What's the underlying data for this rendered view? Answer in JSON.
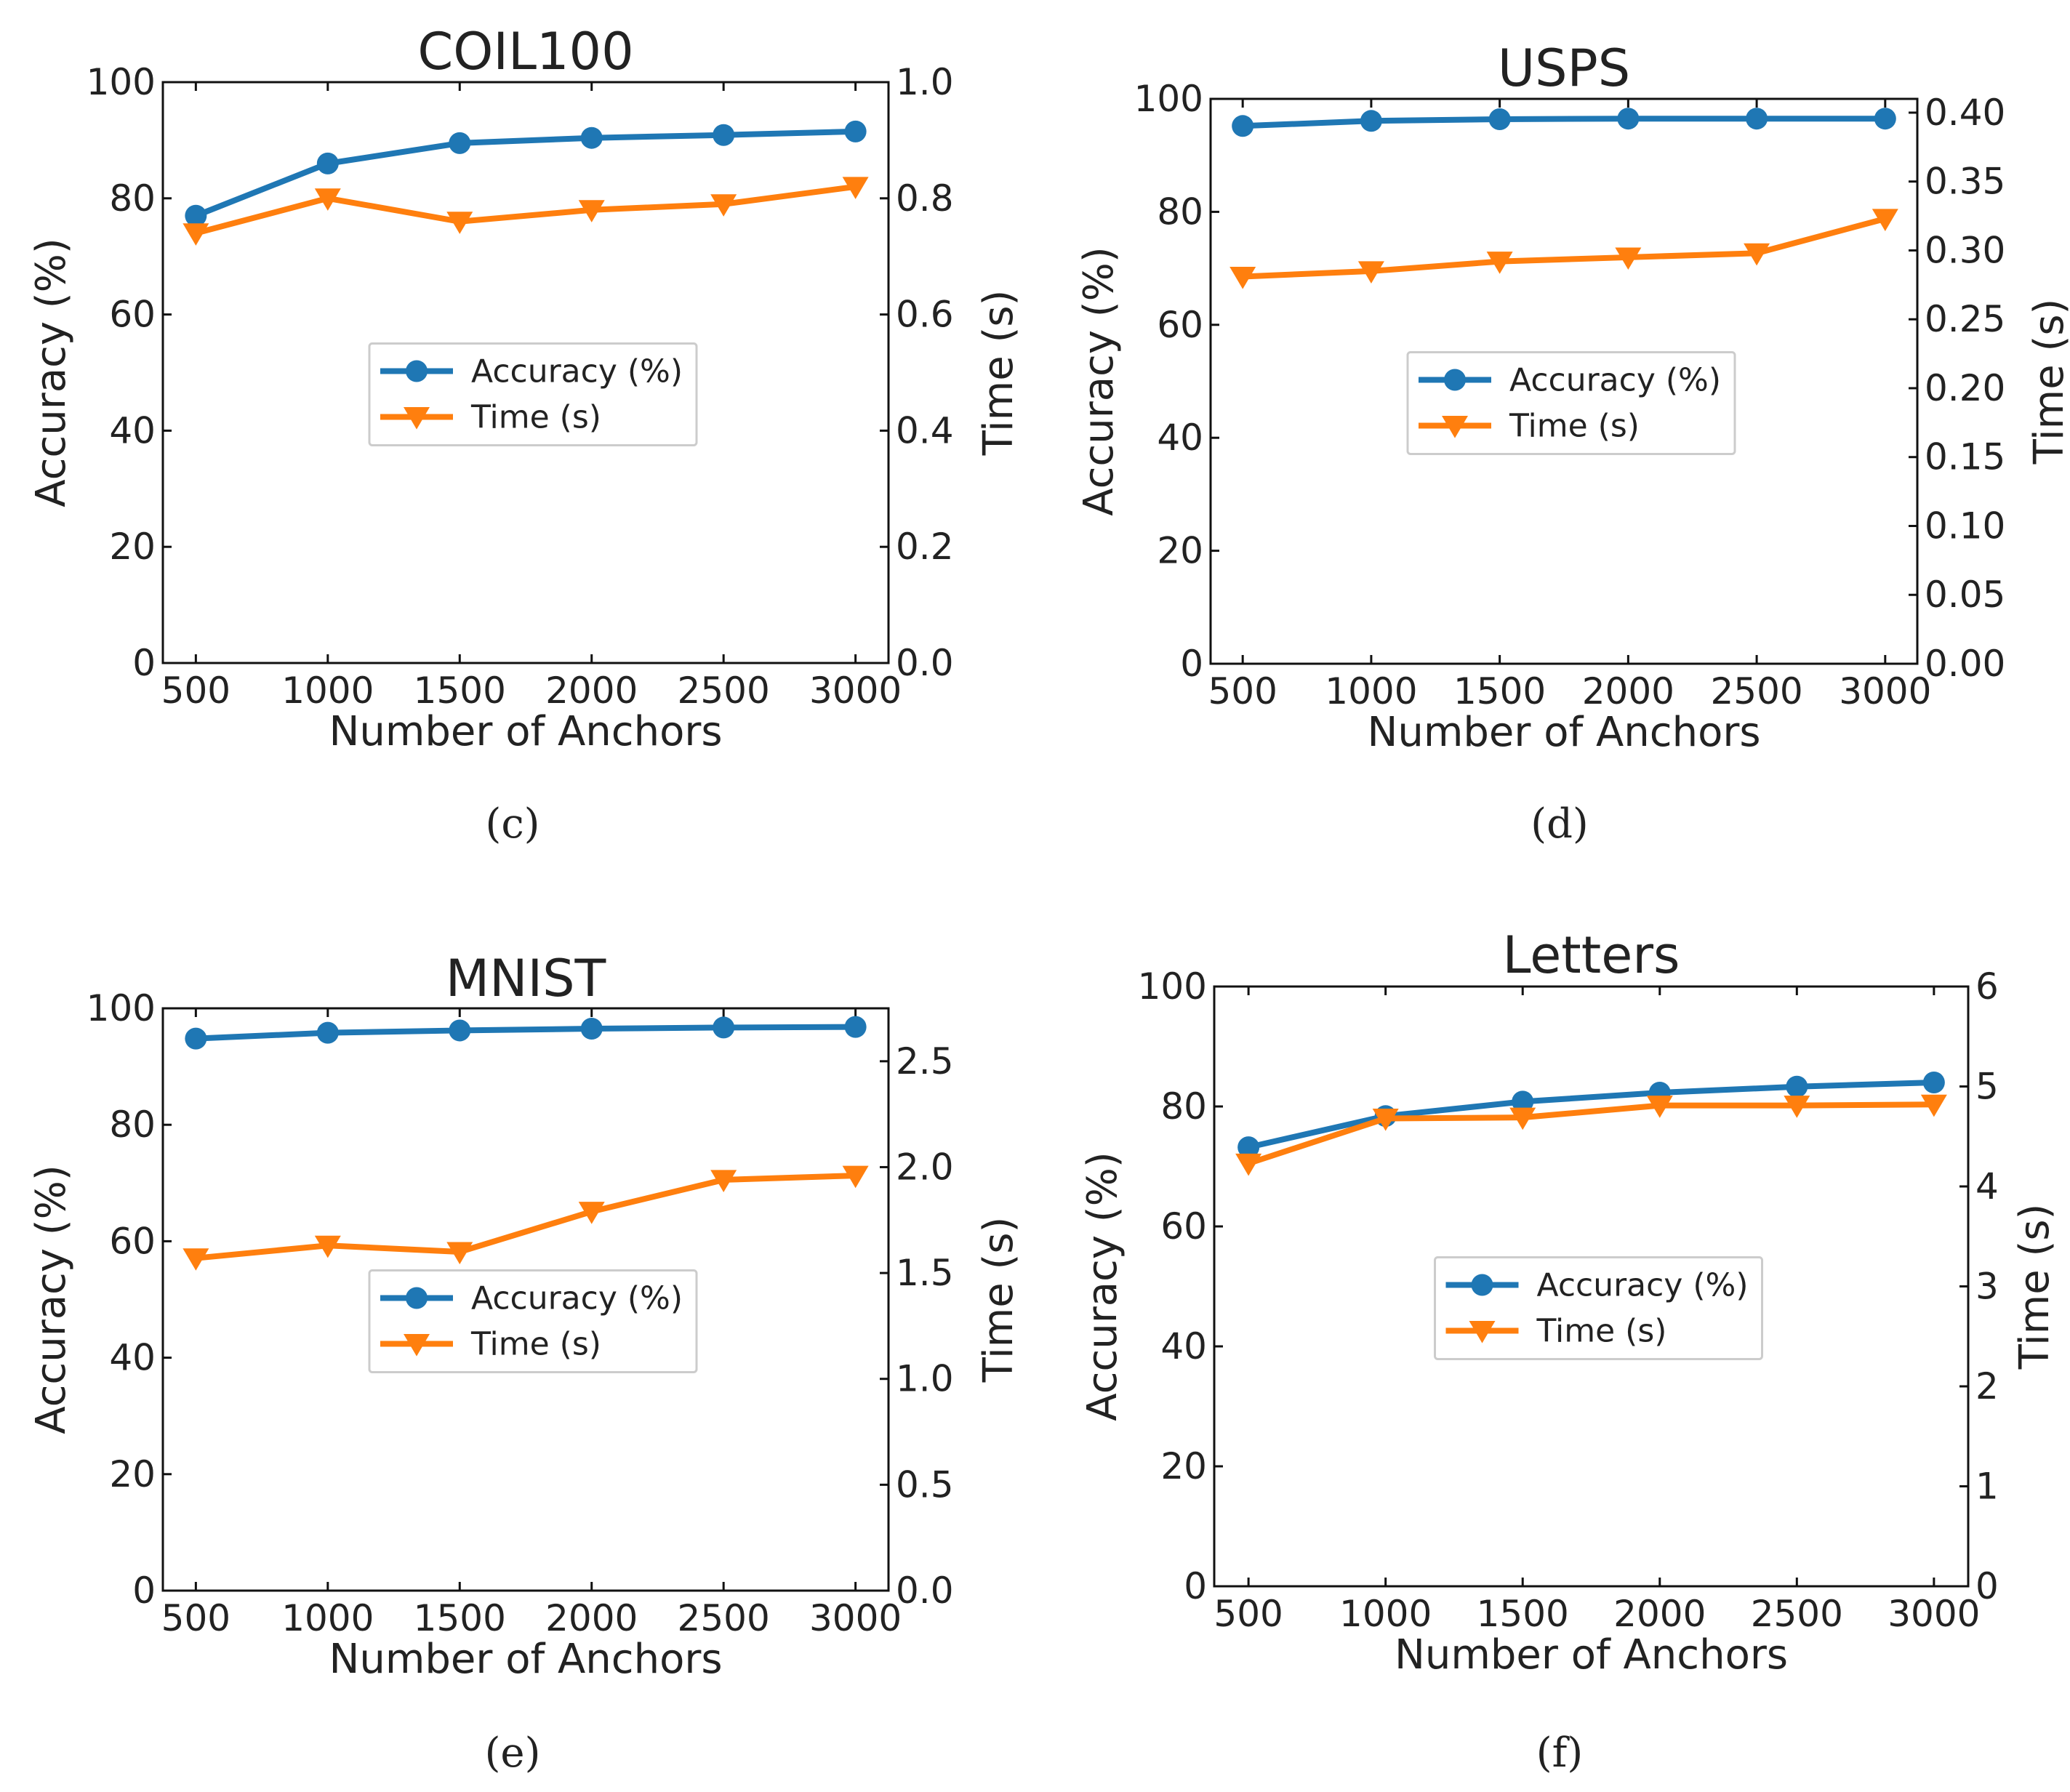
{
  "colors": {
    "accuracy": "#1f77b4",
    "time": "#ff7f0e"
  },
  "chart_data": [
    {
      "type": "line",
      "title": "COIL100",
      "caption": "(c)",
      "xlabel": "Number of Anchors",
      "ylabel": "Accuracy (%)",
      "y2label": "Time (s)",
      "x": [
        500,
        1000,
        1500,
        2000,
        2500,
        3000
      ],
      "x_ticks": [
        "500",
        "1000",
        "1500",
        "2000",
        "2500",
        "3000"
      ],
      "xlim": [
        375,
        3125
      ],
      "ylim": [
        0,
        100
      ],
      "y_ticks": [
        "0",
        "20",
        "40",
        "60",
        "80",
        "100"
      ],
      "y2lim": [
        0,
        1.0
      ],
      "y2_ticks": [
        "0.0",
        "0.2",
        "0.4",
        "0.6",
        "0.8",
        "1.0"
      ],
      "legend": "center",
      "series": [
        {
          "name": "Accuracy (%)",
          "axis": "left",
          "marker": "circle",
          "values": [
            77.0,
            86.0,
            89.5,
            90.4,
            90.9,
            91.5
          ]
        },
        {
          "name": "Time (s)",
          "axis": "right",
          "marker": "triangle-down",
          "values": [
            0.74,
            0.8,
            0.76,
            0.78,
            0.79,
            0.82
          ]
        }
      ]
    },
    {
      "type": "line",
      "title": "USPS",
      "caption": "(d)",
      "xlabel": "Number of Anchors",
      "ylabel": "Accuracy (%)",
      "y2label": "Time (s)",
      "x": [
        500,
        1000,
        1500,
        2000,
        2500,
        3000
      ],
      "x_ticks": [
        "500",
        "1000",
        "1500",
        "2000",
        "2500",
        "3000"
      ],
      "xlim": [
        375,
        3125
      ],
      "ylim": [
        0,
        100
      ],
      "y_ticks": [
        "0",
        "20",
        "40",
        "60",
        "80",
        "100"
      ],
      "y2lim": [
        0,
        0.41
      ],
      "y2_ticks": [
        "0.00",
        "0.05",
        "0.10",
        "0.15",
        "0.20",
        "0.25",
        "0.30",
        "0.35",
        "0.40"
      ],
      "legend": "center",
      "series": [
        {
          "name": "Accuracy (%)",
          "axis": "left",
          "marker": "circle",
          "values": [
            95.2,
            96.1,
            96.4,
            96.5,
            96.5,
            96.5
          ]
        },
        {
          "name": "Time (s)",
          "axis": "right",
          "marker": "triangle-down",
          "values": [
            0.281,
            0.285,
            0.292,
            0.295,
            0.298,
            0.323
          ]
        }
      ]
    },
    {
      "type": "line",
      "title": "MNIST",
      "caption": "(e)",
      "xlabel": "Number of Anchors",
      "ylabel": "Accuracy (%)",
      "y2label": "Time (s)",
      "x": [
        500,
        1000,
        1500,
        2000,
        2500,
        3000
      ],
      "x_ticks": [
        "500",
        "1000",
        "1500",
        "2000",
        "2500",
        "3000"
      ],
      "xlim": [
        375,
        3125
      ],
      "ylim": [
        0,
        100
      ],
      "y_ticks": [
        "0",
        "20",
        "40",
        "60",
        "80",
        "100"
      ],
      "y2lim": [
        0,
        2.75
      ],
      "y2_ticks": [
        "0.0",
        "0.5",
        "1.0",
        "1.5",
        "2.0",
        "2.5"
      ],
      "legend": "center",
      "series": [
        {
          "name": "Accuracy (%)",
          "axis": "left",
          "marker": "circle",
          "values": [
            94.8,
            95.8,
            96.2,
            96.5,
            96.7,
            96.8
          ]
        },
        {
          "name": "Time (s)",
          "axis": "right",
          "marker": "triangle-down",
          "values": [
            1.57,
            1.63,
            1.6,
            1.79,
            1.94,
            1.96
          ]
        }
      ]
    },
    {
      "type": "line",
      "title": "Letters",
      "caption": "(f)",
      "xlabel": "Number of Anchors",
      "ylabel": "Accuracy (%)",
      "y2label": "Time (s)",
      "x": [
        500,
        1000,
        1500,
        2000,
        2500,
        3000
      ],
      "x_ticks": [
        "500",
        "1000",
        "1500",
        "2000",
        "2500",
        "3000"
      ],
      "xlim": [
        375,
        3125
      ],
      "ylim": [
        0,
        100
      ],
      "y_ticks": [
        "0",
        "20",
        "40",
        "60",
        "80",
        "100"
      ],
      "y2lim": [
        0,
        6
      ],
      "y2_ticks": [
        "0",
        "1",
        "2",
        "3",
        "4",
        "5",
        "6"
      ],
      "legend": "center",
      "series": [
        {
          "name": "Accuracy (%)",
          "axis": "left",
          "marker": "circle",
          "values": [
            73.2,
            78.4,
            80.8,
            82.3,
            83.3,
            84.0
          ]
        },
        {
          "name": "Time (s)",
          "axis": "right",
          "marker": "triangle-down",
          "values": [
            4.23,
            4.68,
            4.69,
            4.81,
            4.81,
            4.82
          ]
        }
      ]
    }
  ]
}
